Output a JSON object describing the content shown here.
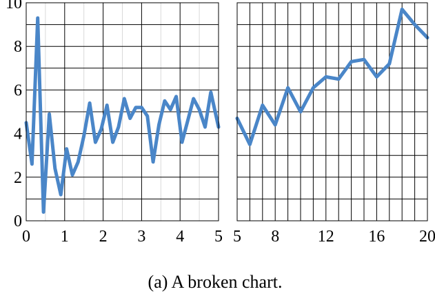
{
  "caption": "(a)  A broken chart.",
  "colors": {
    "series": "#4a86c8"
  },
  "chart_data": [
    {
      "type": "line",
      "title": "",
      "xlabel": "",
      "ylabel": "",
      "xlim": [
        0,
        5
      ],
      "ylim": [
        0,
        10
      ],
      "x_ticks": [
        0,
        1,
        2,
        3,
        4,
        5
      ],
      "x_minor_ticks": [
        0.5,
        1.5,
        2.5,
        3.5,
        4.5
      ],
      "y_ticks": [
        0,
        2,
        4,
        6,
        8,
        10
      ],
      "y_minor_ticks": [
        1,
        3,
        5,
        7,
        9
      ],
      "grid": true,
      "series": [
        {
          "x": [
            0,
            0.15,
            0.3,
            0.45,
            0.6,
            0.75,
            0.9,
            1.05,
            1.2,
            1.35,
            1.5,
            1.65,
            1.8,
            1.95,
            2.1,
            2.25,
            2.4,
            2.55,
            2.7,
            2.85,
            3.0,
            3.15,
            3.3,
            3.45,
            3.6,
            3.75,
            3.9,
            4.05,
            4.2,
            4.35,
            4.5,
            4.65,
            4.8,
            5.0
          ],
          "y": [
            4.5,
            2.6,
            9.3,
            0.4,
            4.9,
            2.4,
            1.2,
            3.3,
            2.1,
            2.7,
            3.9,
            5.4,
            3.6,
            4.2,
            5.3,
            3.6,
            4.3,
            5.6,
            4.7,
            5.2,
            5.2,
            4.8,
            2.7,
            4.4,
            5.5,
            5.1,
            5.7,
            3.6,
            4.6,
            5.6,
            5.1,
            4.3,
            5.9,
            4.3
          ]
        }
      ]
    },
    {
      "type": "line",
      "title": "",
      "xlabel": "",
      "ylabel": "",
      "xlim": [
        5,
        20
      ],
      "ylim": [
        0,
        10
      ],
      "x_ticks": [
        5,
        8,
        12,
        16,
        20
      ],
      "x_grid": [
        5,
        6,
        7,
        8,
        9,
        10,
        11,
        12,
        13,
        14,
        15,
        16,
        17,
        18,
        19,
        20
      ],
      "y_ticks": [
        0,
        2,
        4,
        6,
        8,
        10
      ],
      "y_minor_ticks": [
        1,
        3,
        5,
        7,
        9
      ],
      "grid": true,
      "series": [
        {
          "x": [
            5,
            6,
            7,
            8,
            9,
            10,
            11,
            12,
            13,
            14,
            15,
            16,
            17,
            18,
            19,
            20
          ],
          "y": [
            4.7,
            3.5,
            5.3,
            4.4,
            6.1,
            5.0,
            6.1,
            6.6,
            6.5,
            7.3,
            7.4,
            6.6,
            7.2,
            9.7,
            9.0,
            8.4
          ]
        }
      ]
    }
  ]
}
